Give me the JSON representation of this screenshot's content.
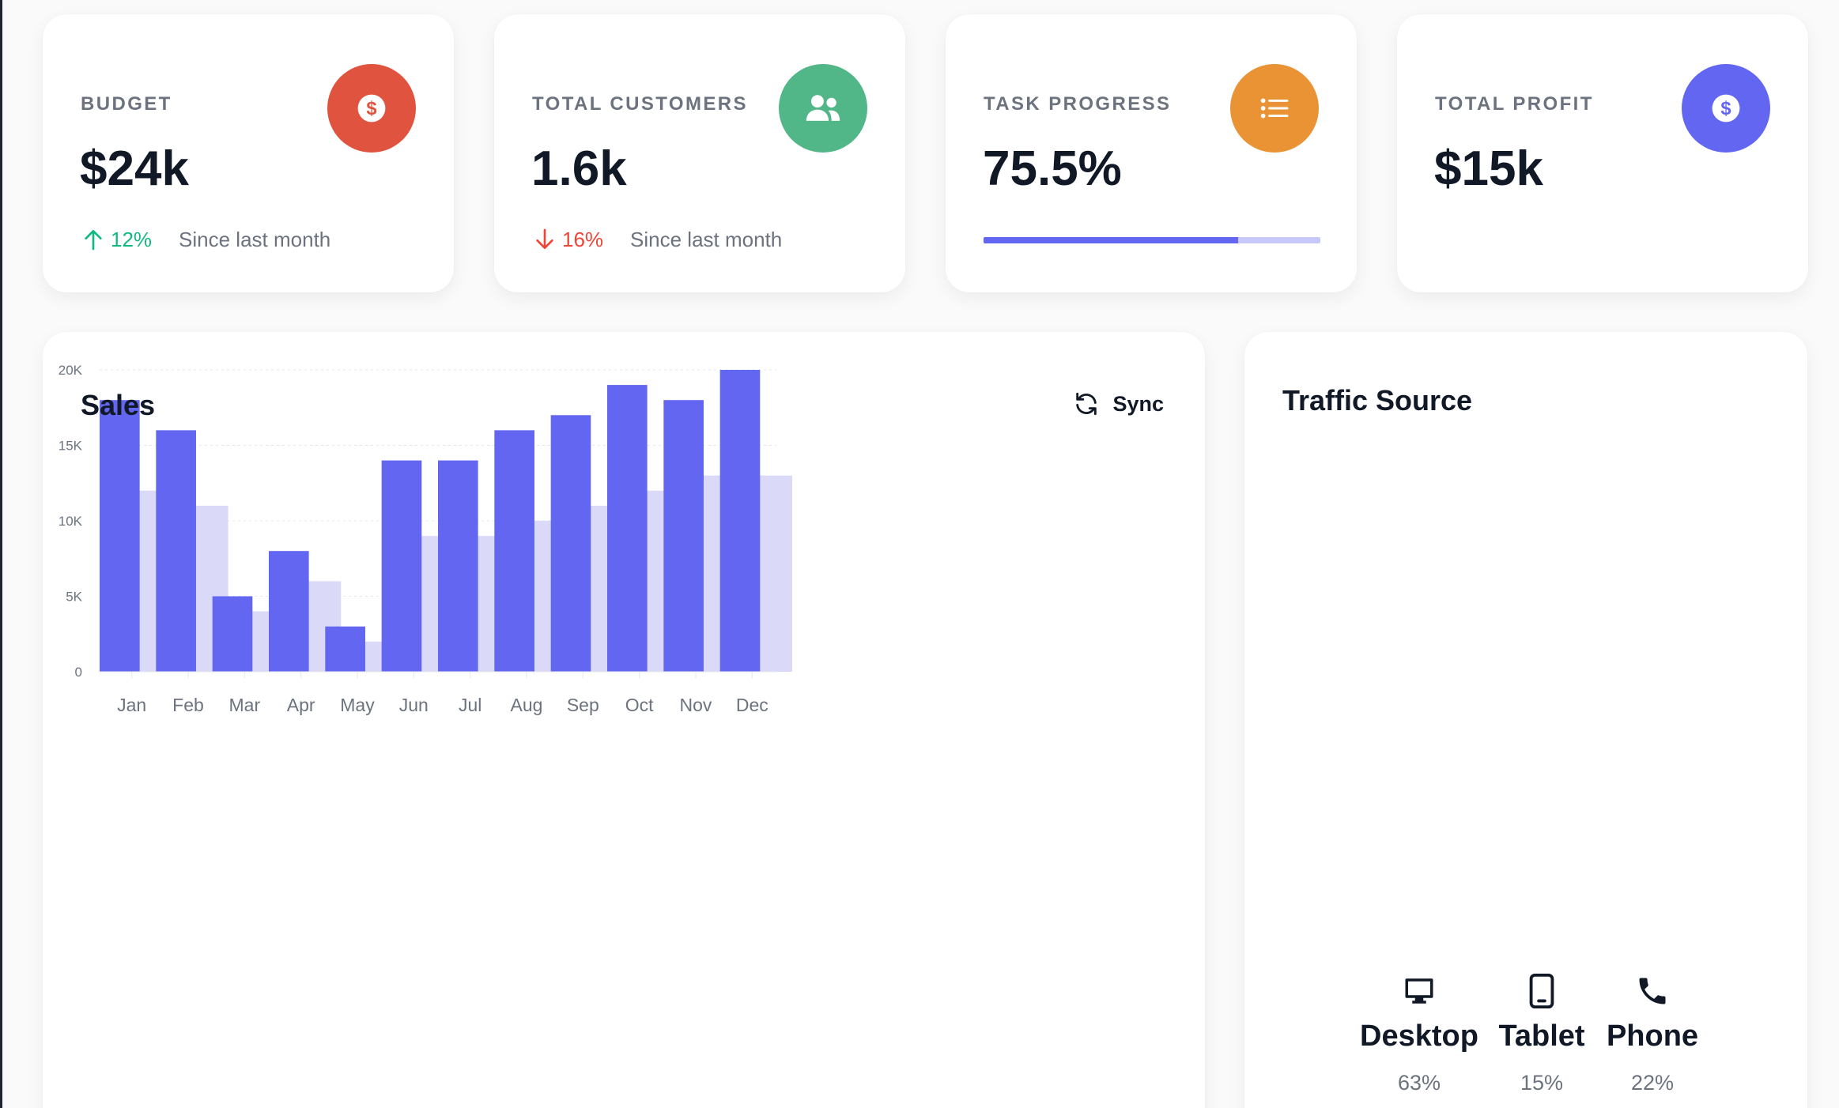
{
  "stats": {
    "budget": {
      "label": "BUDGET",
      "value": "$24k",
      "trend": "12%",
      "trend_direction": "up",
      "since": "Since last month",
      "icon": "dollar-icon",
      "color": "#f04438"
    },
    "customers": {
      "label": "TOTAL CUSTOMERS",
      "value": "1.6k",
      "trend": "16%",
      "trend_direction": "down",
      "since": "Since last month",
      "icon": "users-icon",
      "color": "#10b981"
    },
    "progress": {
      "label": "TASK PROGRESS",
      "value": "75.5%",
      "progress_fraction": 0.755,
      "icon": "list-icon",
      "color": "#f79009"
    },
    "profit": {
      "label": "TOTAL PROFIT",
      "value": "$15k",
      "icon": "dollar-icon",
      "color": "#6366f1"
    }
  },
  "sales": {
    "title": "Sales",
    "sync_label": "Sync"
  },
  "traffic": {
    "title": "Traffic Source",
    "devices": [
      {
        "name": "Desktop",
        "percent": "63%",
        "icon": "desktop-icon"
      },
      {
        "name": "Tablet",
        "percent": "15%",
        "icon": "tablet-icon"
      },
      {
        "name": "Phone",
        "percent": "22%",
        "icon": "phone-icon"
      }
    ]
  },
  "chart_data": [
    {
      "type": "bar",
      "title": "Sales",
      "categories": [
        "Jan",
        "Feb",
        "Mar",
        "Apr",
        "May",
        "Jun",
        "Jul",
        "Aug",
        "Sep",
        "Oct",
        "Nov",
        "Dec"
      ],
      "series": [
        {
          "values": [
            18000,
            16000,
            5000,
            8000,
            3000,
            14000,
            14000,
            16000,
            17000,
            19000,
            18000,
            20000
          ],
          "color": "#6366f1"
        },
        {
          "values": [
            12000,
            11000,
            4000,
            6000,
            2000,
            9000,
            9000,
            10000,
            11000,
            12000,
            13000,
            13000
          ],
          "color": "#dadaf8"
        }
      ],
      "yticks": [
        "0",
        "5K",
        "10K",
        "15K",
        "20K"
      ],
      "ylim": [
        0,
        20000
      ],
      "grid": true,
      "legend": "none"
    },
    {
      "type": "pie",
      "title": "Traffic Source",
      "categories": [
        "Desktop",
        "Tablet",
        "Phone"
      ],
      "values": [
        63,
        15,
        22
      ],
      "colors": [
        "#6366f1",
        "#10b981",
        "#f79009"
      ],
      "donut": true
    }
  ]
}
